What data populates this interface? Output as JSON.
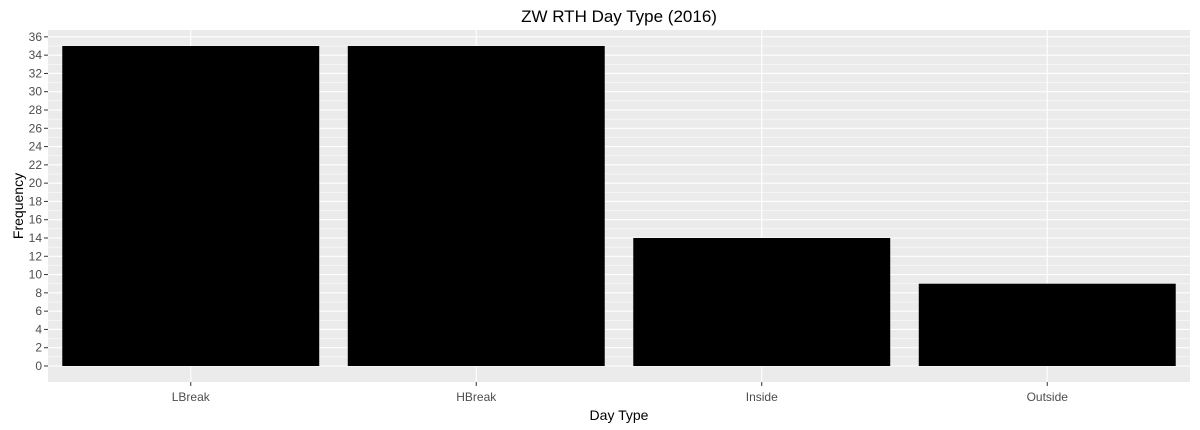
{
  "chart_data": {
    "type": "bar",
    "title": "ZW RTH Day Type (2016)",
    "xlabel": "Day Type",
    "ylabel": "Frequency",
    "categories": [
      "LBreak",
      "HBreak",
      "Inside",
      "Outside"
    ],
    "values": [
      35,
      35,
      14,
      9
    ],
    "ylim": [
      -1.75,
      36.75
    ],
    "yticks": [
      0,
      2,
      4,
      6,
      8,
      10,
      12,
      14,
      16,
      18,
      20,
      22,
      24,
      26,
      28,
      30,
      32,
      34,
      36
    ],
    "bar_color": "#000000",
    "panel_background": "#ebebeb",
    "grid_color": "#ffffff",
    "grid": true,
    "legend": "none"
  }
}
